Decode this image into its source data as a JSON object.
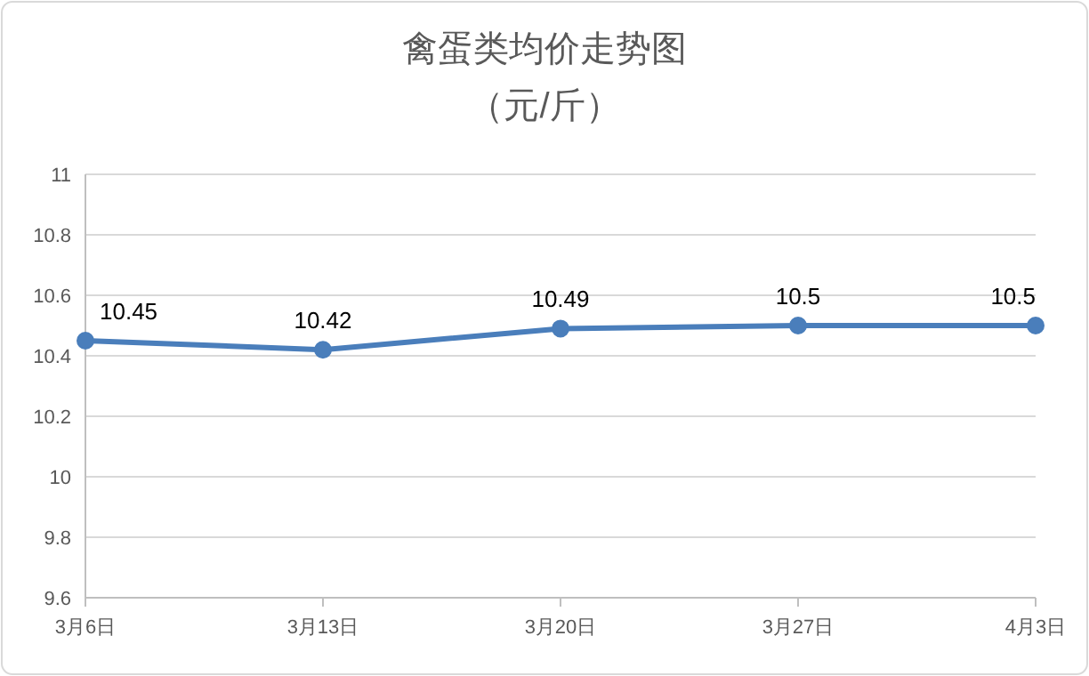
{
  "chart_data": {
    "type": "line",
    "title": "禽蛋类均价走势图",
    "subtitle": "（元/斤）",
    "categories": [
      "3月6日",
      "3月13日",
      "3月20日",
      "3月27日",
      "4月3日"
    ],
    "series": [
      {
        "color": "#4a7ebb",
        "values": [
          10.45,
          10.42,
          10.49,
          10.5,
          10.5
        ]
      }
    ],
    "ylim": [
      9.6,
      11
    ],
    "yticks": [
      9.6,
      9.8,
      10,
      10.2,
      10.4,
      10.6,
      10.8,
      11
    ],
    "grid": "y",
    "data_labels": true,
    "marker": "circle"
  }
}
